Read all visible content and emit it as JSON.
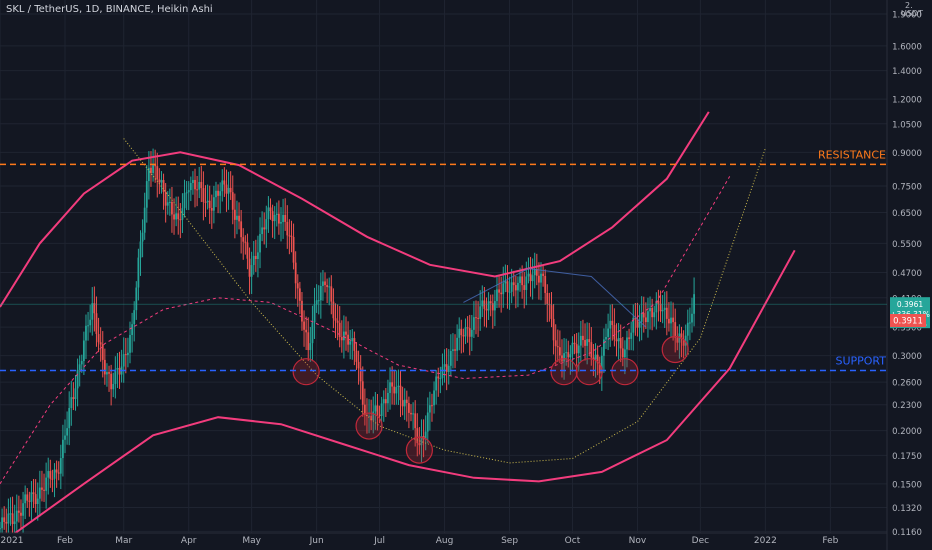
{
  "header": {
    "title": "SKL / TetherUS, 1D, BINANCE, Heikin Ashi",
    "corner_top": "2.",
    "corner_unit": "USDT"
  },
  "chart_data": {
    "type": "candlestick",
    "title": "SKL / TetherUS, 1D, BINANCE, Heikin Ashi",
    "y_scale": "log",
    "ylim": [
      0.115,
      2.05
    ],
    "xlim": [
      "2021-01-01",
      "2022-02-28"
    ],
    "y_ticks": [
      "1.9000",
      "1.6000",
      "1.4000",
      "1.2000",
      "1.0500",
      "0.9000",
      "0.7500",
      "0.6500",
      "0.5500",
      "0.4700",
      "0.4100",
      "0.3500",
      "0.3000",
      "0.2600",
      "0.2300",
      "0.2000",
      "0.1750",
      "0.1500",
      "0.1320",
      "0.1160"
    ],
    "x_ticks": [
      {
        "label": "2021",
        "date": "2021-01-01"
      },
      {
        "label": "Feb",
        "date": "2021-02-01"
      },
      {
        "label": "Mar",
        "date": "2021-03-01"
      },
      {
        "label": "Apr",
        "date": "2021-04-01"
      },
      {
        "label": "May",
        "date": "2021-05-01"
      },
      {
        "label": "Jun",
        "date": "2021-06-01"
      },
      {
        "label": "Jul",
        "date": "2021-07-01"
      },
      {
        "label": "Aug",
        "date": "2021-08-01"
      },
      {
        "label": "Sep",
        "date": "2021-09-01"
      },
      {
        "label": "Oct",
        "date": "2021-10-01"
      },
      {
        "label": "Nov",
        "date": "2021-11-01"
      },
      {
        "label": "Dec",
        "date": "2021-12-01"
      },
      {
        "label": "2022",
        "date": "2022-01-01"
      },
      {
        "label": "Feb",
        "date": "2022-02-01"
      }
    ],
    "price_path": [
      [
        "2021-01-01",
        0.118
      ],
      [
        "2021-01-10",
        0.13
      ],
      [
        "2021-01-20",
        0.145
      ],
      [
        "2021-01-28",
        0.16
      ],
      [
        "2021-02-05",
        0.24
      ],
      [
        "2021-02-10",
        0.33
      ],
      [
        "2021-02-14",
        0.38
      ],
      [
        "2021-02-19",
        0.3
      ],
      [
        "2021-02-23",
        0.25
      ],
      [
        "2021-02-28",
        0.29
      ],
      [
        "2021-03-05",
        0.34
      ],
      [
        "2021-03-09",
        0.55
      ],
      [
        "2021-03-13",
        0.85
      ],
      [
        "2021-03-17",
        0.78
      ],
      [
        "2021-03-22",
        0.7
      ],
      [
        "2021-03-27",
        0.6
      ],
      [
        "2021-04-01",
        0.78
      ],
      [
        "2021-04-05",
        0.74
      ],
      [
        "2021-04-10",
        0.68
      ],
      [
        "2021-04-15",
        0.72
      ],
      [
        "2021-04-20",
        0.75
      ],
      [
        "2021-04-25",
        0.6
      ],
      [
        "2021-04-30",
        0.48
      ],
      [
        "2021-05-05",
        0.56
      ],
      [
        "2021-05-10",
        0.66
      ],
      [
        "2021-05-15",
        0.63
      ],
      [
        "2021-05-20",
        0.55
      ],
      [
        "2021-05-24",
        0.4
      ],
      [
        "2021-05-28",
        0.3
      ],
      [
        "2021-06-01",
        0.42
      ],
      [
        "2021-06-05",
        0.45
      ],
      [
        "2021-06-10",
        0.36
      ],
      [
        "2021-06-15",
        0.33
      ],
      [
        "2021-06-20",
        0.3
      ],
      [
        "2021-06-25",
        0.21
      ],
      [
        "2021-06-30",
        0.22
      ],
      [
        "2021-07-05",
        0.25
      ],
      [
        "2021-07-10",
        0.245
      ],
      [
        "2021-07-15",
        0.23
      ],
      [
        "2021-07-20",
        0.18
      ],
      [
        "2021-07-25",
        0.23
      ],
      [
        "2021-07-30",
        0.27
      ],
      [
        "2021-08-05",
        0.31
      ],
      [
        "2021-08-10",
        0.34
      ],
      [
        "2021-08-15",
        0.36
      ],
      [
        "2021-08-20",
        0.39
      ],
      [
        "2021-08-25",
        0.41
      ],
      [
        "2021-08-30",
        0.43
      ],
      [
        "2021-09-04",
        0.45
      ],
      [
        "2021-09-08",
        0.43
      ],
      [
        "2021-09-12",
        0.48
      ],
      [
        "2021-09-16",
        0.46
      ],
      [
        "2021-09-20",
        0.38
      ],
      [
        "2021-09-24",
        0.31
      ],
      [
        "2021-09-28",
        0.29
      ],
      [
        "2021-10-02",
        0.32
      ],
      [
        "2021-10-06",
        0.33
      ],
      [
        "2021-10-10",
        0.3
      ],
      [
        "2021-10-14",
        0.29
      ],
      [
        "2021-10-18",
        0.35
      ],
      [
        "2021-10-22",
        0.33
      ],
      [
        "2021-10-26",
        0.31
      ],
      [
        "2021-10-30",
        0.35
      ],
      [
        "2021-11-04",
        0.38
      ],
      [
        "2021-11-08",
        0.37
      ],
      [
        "2021-11-12",
        0.4
      ],
      [
        "2021-11-16",
        0.37
      ],
      [
        "2021-11-20",
        0.32
      ],
      [
        "2021-11-24",
        0.34
      ],
      [
        "2021-11-28",
        0.4
      ]
    ],
    "channel_lines": [
      {
        "style": "solid",
        "color": "#f23c7d",
        "points": [
          [
            "2021-01-01",
            0.39
          ],
          [
            "2021-01-20",
            0.55
          ],
          [
            "2021-02-10",
            0.72
          ],
          [
            "2021-03-05",
            0.86
          ],
          [
            "2021-03-28",
            0.9
          ],
          [
            "2021-04-25",
            0.84
          ],
          [
            "2021-05-25",
            0.7
          ],
          [
            "2021-06-25",
            0.57
          ],
          [
            "2021-07-25",
            0.49
          ],
          [
            "2021-08-25",
            0.46
          ],
          [
            "2021-09-25",
            0.5
          ],
          [
            "2021-10-20",
            0.6
          ],
          [
            "2021-11-15",
            0.78
          ],
          [
            "2021-12-05",
            1.12
          ]
        ]
      },
      {
        "style": "dashed",
        "color": "#f23c7d",
        "points": [
          [
            "2021-01-01",
            0.15
          ],
          [
            "2021-01-25",
            0.23
          ],
          [
            "2021-02-20",
            0.32
          ],
          [
            "2021-03-20",
            0.385
          ],
          [
            "2021-04-15",
            0.41
          ],
          [
            "2021-05-10",
            0.4
          ],
          [
            "2021-06-10",
            0.34
          ],
          [
            "2021-07-10",
            0.285
          ],
          [
            "2021-08-10",
            0.265
          ],
          [
            "2021-09-10",
            0.27
          ],
          [
            "2021-10-10",
            0.305
          ],
          [
            "2021-11-10",
            0.4
          ],
          [
            "2021-12-15",
            0.79
          ]
        ]
      },
      {
        "style": "solid",
        "color": "#f23c7d",
        "points": [
          [
            "2021-01-05",
            0.112
          ],
          [
            "2021-02-10",
            0.15
          ],
          [
            "2021-03-15",
            0.195
          ],
          [
            "2021-04-15",
            0.215
          ],
          [
            "2021-05-15",
            0.207
          ],
          [
            "2021-06-15",
            0.185
          ],
          [
            "2021-07-15",
            0.166
          ],
          [
            "2021-08-15",
            0.155
          ],
          [
            "2021-09-15",
            0.152
          ],
          [
            "2021-10-15",
            0.16
          ],
          [
            "2021-11-15",
            0.19
          ],
          [
            "2021-12-15",
            0.28
          ],
          [
            "2022-01-15",
            0.53
          ]
        ]
      },
      {
        "style": "dotted",
        "color": "#cdbb4d",
        "points": [
          [
            "2021-03-01",
            0.97
          ],
          [
            "2021-04-01",
            0.62
          ],
          [
            "2021-05-01",
            0.4
          ],
          [
            "2021-06-01",
            0.27
          ],
          [
            "2021-07-01",
            0.205
          ],
          [
            "2021-08-01",
            0.18
          ],
          [
            "2021-09-01",
            0.168
          ],
          [
            "2021-10-01",
            0.172
          ],
          [
            "2021-11-01",
            0.21
          ],
          [
            "2021-12-01",
            0.33
          ],
          [
            "2022-01-01",
            0.92
          ]
        ]
      },
      {
        "style": "solid-thin",
        "color": "#4a6fbf",
        "points": [
          [
            "2021-08-10",
            0.4
          ],
          [
            "2021-09-10",
            0.48
          ],
          [
            "2021-10-10",
            0.46
          ],
          [
            "2021-11-05",
            0.35
          ]
        ]
      }
    ],
    "circled_lows": [
      [
        "2021-05-27",
        0.275
      ],
      [
        "2021-06-26",
        0.205
      ],
      [
        "2021-07-20",
        0.18
      ],
      [
        "2021-09-27",
        0.275
      ],
      [
        "2021-10-09",
        0.275
      ],
      [
        "2021-10-26",
        0.275
      ],
      [
        "2021-11-19",
        0.31
      ]
    ],
    "horizontal_lines": [
      {
        "name": "RESISTANCE",
        "value": 0.8431,
        "label": "0.8431",
        "color": "#ff7a1a",
        "label_text_color": "#ffffff"
      },
      {
        "name": "SUPPORT",
        "value": 0.2767,
        "label": "0.2767",
        "color": "#2962ff",
        "label_text_color": "#ffffff"
      }
    ],
    "annotations": [
      {
        "text": "RESISTANCE",
        "color": "#ff7a1a"
      },
      {
        "text": "SUPPORT",
        "color": "#2962ff"
      }
    ],
    "price_badge": {
      "price": "0.3961",
      "change": "+336.31%",
      "countdown": "07:55:15",
      "value": 0.3961,
      "color": "#26a69a"
    },
    "prev_close_badge": {
      "label": "0.3911",
      "value": 0.3911,
      "color": "#ef5350"
    },
    "visible_top_tick": "2.",
    "colors": {
      "bull": "#26a69a",
      "bear": "#ef5350",
      "background": "#131722",
      "grid": "#1f2431",
      "axis_text": "#b2b5be"
    },
    "grid": true
  }
}
